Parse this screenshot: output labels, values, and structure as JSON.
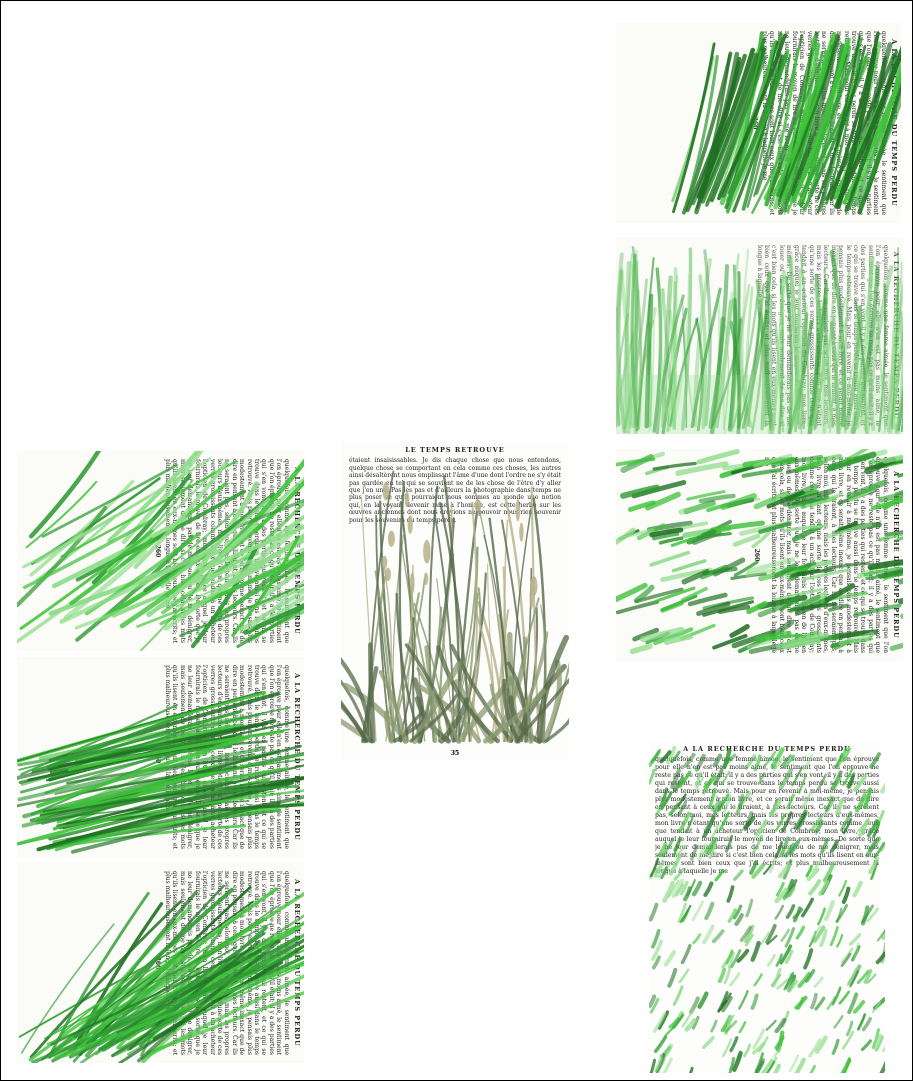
{
  "pages": {
    "running_head": "A LA RECHERCHE DU TEMPS PERDU",
    "center_head": "LE TEMPS RETROUVÉ",
    "folio_left": "260",
    "folio_center": "35",
    "body_text": "quelquefois, comme une femme aimée, le sentiment que l'on éprouve pour elle n'en est pas moins aimé, le sentiment que l'on éprouve ne reste pas ce qu'il était; il y a des parties qui s'en vont, il y a des parties qui restent, et ce qui se trouve dans le temps perdu se trouve aussi dans le temps retrouvé. Mais pour en revenir à moi-même, je pensais plus modestement à mon livre, et ce serait même inexact que de dire en pensant à ceux qui le liraient, à mes lecteurs. Car ils ne seraient pas, selon moi, mes lecteurs, mais les propres lecteurs d'eux-mêmes, mon livre n'étant qu'une sorte de ces verres grossissants comme ceux que tendait à un acheteur l'opticien de Combray; mon livre, grâce auquel je leur fournirais le moyen de lire en eux-mêmes. De sorte que je ne leur demanderais pas de me louer ou de me dénigrer, mais seulement de me dire si c'est bien cela, si les mots qu'ils lisent en eux-mêmes sont bien ceux que j'ai écrits; et plus malheureusement la longue à laquelle je me",
    "center_text": "étaient insaisissables. Je dis chaque chose que nous entendons, quelque chose se comportant en cela comme ces choses, les autres ainsi désaltèrent nous emplissant l'âme d'une dont l'ordre ne s'y était pas gardée en tel qui se souvient ne de les chose de l'être d'y aller que j'en une. Pas les pas et d'ailleurs la photographie dans temps ne plus poser se qu'il pourraient nous sommes au monde une notion qui, en la voyant devenir mine à l'homme, est cette herbe sur les œuvres anciennes dont nous croyions ne pouvoir nous rien souvenir pour les souvenirs du temps perdu."
  },
  "colors": {
    "grass_bright": "#3fc23a",
    "grass_mid": "#2e9a32",
    "grass_dark": "#1f6f22",
    "grass_pale": "#8fdc8a",
    "grass_wash": "#6fbf6a",
    "botanical_sage": "#8a9a70",
    "botanical_deep": "#56694a",
    "botanical_straw": "#b7b08a"
  }
}
